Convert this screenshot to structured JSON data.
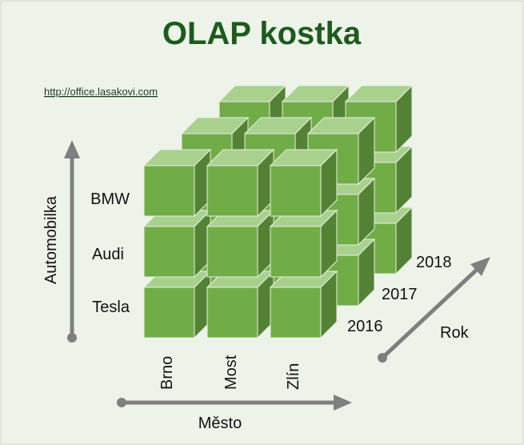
{
  "header": {
    "title": "OLAP kostka",
    "link": "http://office.lasakovi.com"
  },
  "axes": {
    "y": {
      "label": "Automobilka",
      "items": [
        "BMW",
        "Audi",
        "Tesla"
      ]
    },
    "x": {
      "label": "Město",
      "items": [
        "Brno",
        "Most",
        "Zlín"
      ]
    },
    "z": {
      "label": "Rok",
      "items": [
        "2016",
        "2017",
        "2018"
      ]
    }
  }
}
